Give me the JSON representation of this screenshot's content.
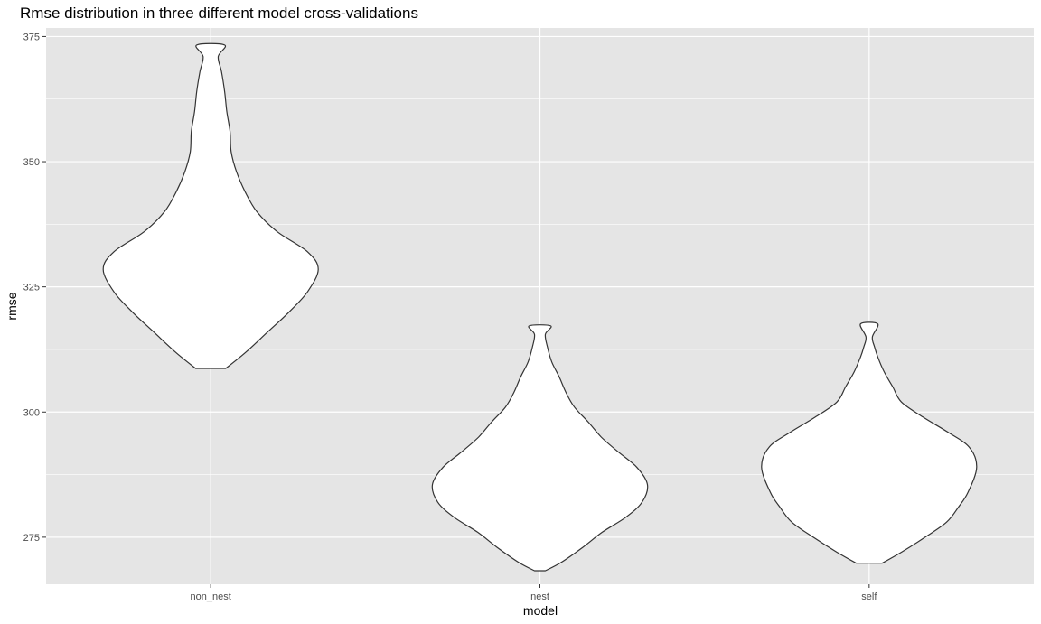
{
  "chart_data": {
    "type": "violin",
    "title": "Rmse distribution in three different model cross-validations",
    "xlabel": "model",
    "ylabel": "rmse",
    "categories": [
      "non_nest",
      "nest",
      "self"
    ],
    "ylim": [
      265.6,
      376.7
    ],
    "yticks": [
      275,
      300,
      325,
      350,
      375
    ],
    "grid": true,
    "panel_background": "#e5e5e5",
    "grid_color": "#ffffff",
    "violin_fill": "#ffffff",
    "violin_stroke": "#333333",
    "series": [
      {
        "category": "non_nest",
        "min": 308.7,
        "max": 373.3,
        "density": [
          [
            308.7,
            0.14
          ],
          [
            312,
            0.33
          ],
          [
            316,
            0.53
          ],
          [
            320,
            0.73
          ],
          [
            324,
            0.9
          ],
          [
            328.5,
            1.0
          ],
          [
            332,
            0.9
          ],
          [
            336,
            0.62
          ],
          [
            340,
            0.43
          ],
          [
            344,
            0.32
          ],
          [
            348,
            0.24
          ],
          [
            352,
            0.19
          ],
          [
            356,
            0.18
          ],
          [
            360,
            0.15
          ],
          [
            364,
            0.13
          ],
          [
            368,
            0.1
          ],
          [
            371,
            0.07
          ],
          [
            373.3,
            0.13
          ]
        ]
      },
      {
        "category": "nest",
        "min": 268.3,
        "max": 317.2,
        "density": [
          [
            268.3,
            0.05
          ],
          [
            270,
            0.2
          ],
          [
            273,
            0.4
          ],
          [
            276,
            0.58
          ],
          [
            279,
            0.8
          ],
          [
            282,
            0.95
          ],
          [
            285.5,
            1.0
          ],
          [
            289,
            0.9
          ],
          [
            292,
            0.73
          ],
          [
            295,
            0.57
          ],
          [
            298,
            0.45
          ],
          [
            301,
            0.32
          ],
          [
            304,
            0.24
          ],
          [
            307,
            0.18
          ],
          [
            310,
            0.11
          ],
          [
            313,
            0.07
          ],
          [
            315.5,
            0.05
          ],
          [
            317.2,
            0.1
          ]
        ]
      },
      {
        "category": "self",
        "min": 269.8,
        "max": 317.6,
        "density": [
          [
            269.8,
            0.12
          ],
          [
            272,
            0.3
          ],
          [
            275,
            0.52
          ],
          [
            278,
            0.72
          ],
          [
            281,
            0.83
          ],
          [
            284,
            0.92
          ],
          [
            289,
            1.0
          ],
          [
            293,
            0.93
          ],
          [
            296,
            0.73
          ],
          [
            299,
            0.5
          ],
          [
            302,
            0.3
          ],
          [
            305,
            0.22
          ],
          [
            308,
            0.14
          ],
          [
            311,
            0.08
          ],
          [
            313,
            0.05
          ],
          [
            315,
            0.03
          ],
          [
            317.6,
            0.08
          ]
        ]
      }
    ]
  }
}
